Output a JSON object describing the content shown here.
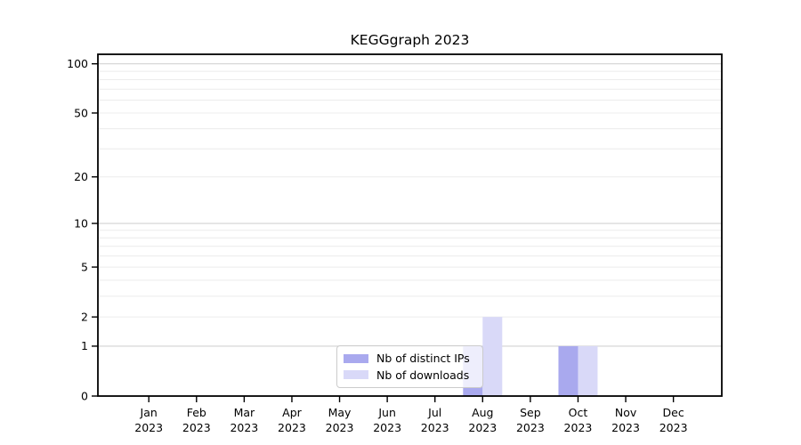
{
  "figure": {
    "background": "#ffffff"
  },
  "chart_data": {
    "type": "bar",
    "title": "KEGGgraph 2023",
    "categories": [
      "Jan",
      "Feb",
      "Mar",
      "Apr",
      "May",
      "Jun",
      "Jul",
      "Aug",
      "Sep",
      "Oct",
      "Nov",
      "Dec"
    ],
    "category_year_line": "2023",
    "series": [
      {
        "name": "Nb of distinct IPs",
        "color": "#a9a9ee",
        "values": [
          0,
          0,
          0,
          0,
          0,
          0,
          0,
          1,
          0,
          1,
          0,
          0
        ]
      },
      {
        "name": "Nb of downloads",
        "color": "#d9d9f8",
        "values": [
          0,
          0,
          0,
          0,
          0,
          0,
          0,
          2,
          0,
          1,
          0,
          0
        ]
      }
    ],
    "xlabel": "",
    "ylabel": "",
    "y_scale": "log1p",
    "ylim": [
      0,
      110
    ],
    "y_ticks": [
      0,
      1,
      2,
      5,
      10,
      20,
      50,
      100
    ],
    "y_major_gridlines": [
      1,
      10,
      100
    ],
    "y_minor_gridlines": [
      2,
      3,
      4,
      5,
      6,
      7,
      8,
      9,
      20,
      30,
      40,
      50,
      60,
      70,
      80,
      90
    ],
    "grid": "horizontal",
    "legend_position": "inside-bottom-center",
    "colors": {
      "axis": "#000000",
      "text": "#000000",
      "major_grid": "#d2d2d2",
      "minor_grid": "#ececec",
      "legend_border": "#cccccc"
    }
  }
}
